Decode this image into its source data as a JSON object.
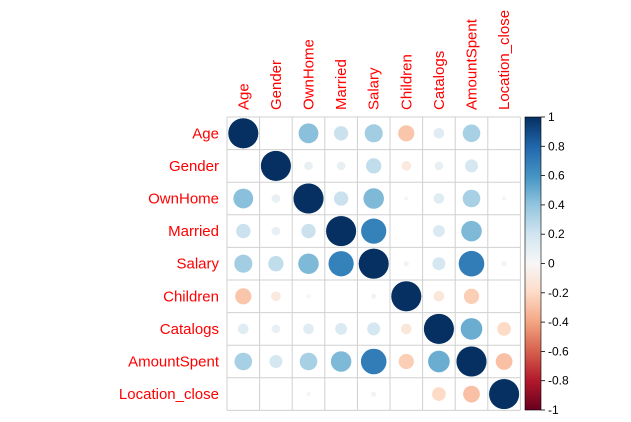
{
  "chart_data": {
    "type": "heatmap",
    "style": "correlation-circles",
    "variables": [
      "Age",
      "Gender",
      "OwnHome",
      "Married",
      "Salary",
      "Children",
      "Catalogs",
      "AmountSpent",
      "Location_close"
    ],
    "matrix": [
      [
        1.0,
        0.0,
        0.42,
        0.22,
        0.35,
        -0.28,
        0.12,
        0.33,
        0.0
      ],
      [
        0.0,
        1.0,
        0.08,
        0.08,
        0.25,
        -0.1,
        0.08,
        0.18,
        0.0
      ],
      [
        0.42,
        0.08,
        1.0,
        0.22,
        0.45,
        0.02,
        0.12,
        0.33,
        0.02
      ],
      [
        0.22,
        0.08,
        0.22,
        1.0,
        0.68,
        0.0,
        0.15,
        0.45,
        0.0
      ],
      [
        0.35,
        0.25,
        0.45,
        0.68,
        1.0,
        0.03,
        0.18,
        0.7,
        0.03
      ],
      [
        -0.28,
        -0.1,
        0.02,
        0.0,
        0.03,
        1.0,
        -0.12,
        -0.25,
        0.0
      ],
      [
        0.12,
        0.08,
        0.12,
        0.15,
        0.18,
        -0.12,
        1.0,
        0.5,
        -0.2
      ],
      [
        0.33,
        0.18,
        0.33,
        0.45,
        0.7,
        -0.25,
        0.5,
        1.0,
        -0.3
      ],
      [
        0.0,
        0.0,
        0.02,
        0.0,
        0.03,
        0.0,
        -0.2,
        -0.3,
        1.0
      ]
    ],
    "colorbar": {
      "ticks": [
        "1",
        "0.8",
        "0.6",
        "0.4",
        "0.2",
        "0",
        "-0.2",
        "-0.4",
        "-0.6",
        "-0.8",
        "-1"
      ],
      "range": [
        -1,
        1
      ],
      "colors": {
        "negative": "#67001f",
        "neutral": "#f7f7f7",
        "positive": "#053061"
      }
    },
    "label_color": "#ff0000",
    "grid": true
  }
}
